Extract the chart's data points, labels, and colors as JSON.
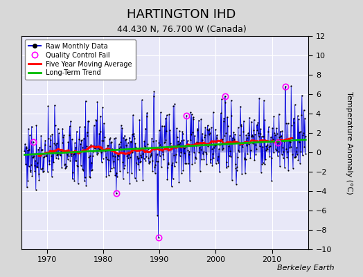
{
  "title": "HARTINGTON IHD",
  "subtitle": "44.430 N, 76.700 W (Canada)",
  "ylabel": "Temperature Anomaly (°C)",
  "credit": "Berkeley Earth",
  "xlim": [
    1965.5,
    2016.5
  ],
  "ylim": [
    -10,
    12
  ],
  "yticks": [
    -10,
    -8,
    -6,
    -4,
    -2,
    0,
    2,
    4,
    6,
    8,
    10,
    12
  ],
  "xticks": [
    1970,
    1980,
    1990,
    2000,
    2010
  ],
  "raw_color": "#0000dd",
  "raw_fill_color": "#8888dd",
  "dot_color": "#000000",
  "ma_color": "#ff0000",
  "trend_color": "#00bb00",
  "qc_color": "#ff00ff",
  "bg_outer": "#d8d8d8",
  "bg_inner": "#e8e8f8",
  "title_fontsize": 13,
  "subtitle_fontsize": 9,
  "label_fontsize": 8,
  "tick_fontsize": 8,
  "credit_fontsize": 8
}
